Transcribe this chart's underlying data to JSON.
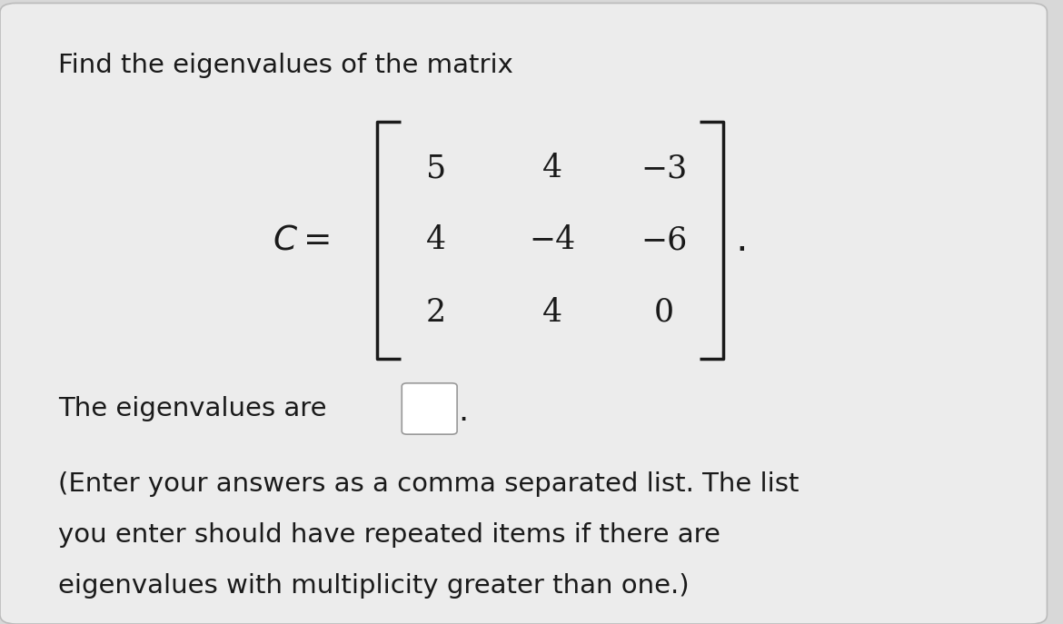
{
  "bg_color": "#d8d8d8",
  "card_color": "#ececec",
  "text_color": "#1a1a1a",
  "title": "Find the eigenvalues of the matrix",
  "matrix": [
    [
      5,
      4,
      -3
    ],
    [
      4,
      -4,
      -6
    ],
    [
      2,
      4,
      0
    ]
  ],
  "matrix_display": [
    [
      "5",
      "4",
      "−3"
    ],
    [
      "4",
      "−4",
      "−6"
    ],
    [
      "2",
      "4",
      "0"
    ]
  ],
  "eigenvalue_text": "The eigenvalues are",
  "note_lines": [
    "(Enter your answers as a comma separated list. The list",
    "you enter should have repeated items if there are",
    "eigenvalues with multiplicity greater than one.)"
  ],
  "title_fontsize": 21,
  "body_fontsize": 21,
  "matrix_fontsize": 25,
  "clabel_fontsize": 25,
  "fig_width": 11.7,
  "fig_height": 6.87
}
